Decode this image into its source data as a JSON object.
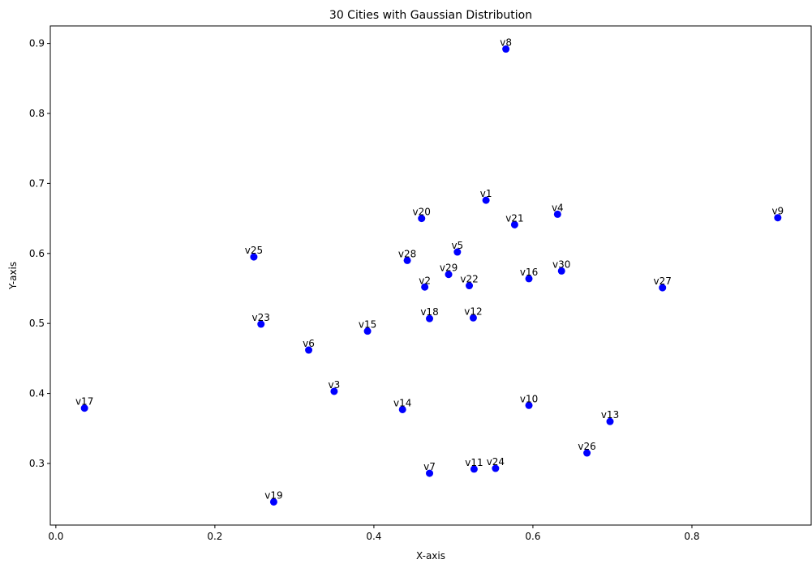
{
  "chart_data": {
    "type": "scatter",
    "title": "30 Cities with Gaussian Distribution",
    "xlabel": "X-axis",
    "ylabel": "Y-axis",
    "xlim": [
      -0.007,
      0.95
    ],
    "ylim": [
      0.212,
      0.925
    ],
    "xticks": [
      "0.0",
      "0.2",
      "0.4",
      "0.6",
      "0.8"
    ],
    "yticks": [
      "0.3",
      "0.4",
      "0.5",
      "0.6",
      "0.7",
      "0.8",
      "0.9"
    ],
    "grid": false,
    "marker_color": "#0000ff",
    "points": [
      {
        "label": "v1",
        "x": 0.541,
        "y": 0.676
      },
      {
        "label": "v2",
        "x": 0.464,
        "y": 0.552
      },
      {
        "label": "v3",
        "x": 0.35,
        "y": 0.403
      },
      {
        "label": "v4",
        "x": 0.631,
        "y": 0.656
      },
      {
        "label": "v5",
        "x": 0.505,
        "y": 0.602
      },
      {
        "label": "v6",
        "x": 0.318,
        "y": 0.462
      },
      {
        "label": "v7",
        "x": 0.47,
        "y": 0.286
      },
      {
        "label": "v8",
        "x": 0.566,
        "y": 0.892
      },
      {
        "label": "v9",
        "x": 0.908,
        "y": 0.651
      },
      {
        "label": "v10",
        "x": 0.595,
        "y": 0.383
      },
      {
        "label": "v11",
        "x": 0.526,
        "y": 0.292
      },
      {
        "label": "v12",
        "x": 0.525,
        "y": 0.508
      },
      {
        "label": "v13",
        "x": 0.697,
        "y": 0.36
      },
      {
        "label": "v14",
        "x": 0.436,
        "y": 0.377
      },
      {
        "label": "v15",
        "x": 0.392,
        "y": 0.489
      },
      {
        "label": "v16",
        "x": 0.595,
        "y": 0.564
      },
      {
        "label": "v17",
        "x": 0.036,
        "y": 0.379
      },
      {
        "label": "v18",
        "x": 0.47,
        "y": 0.507
      },
      {
        "label": "v19",
        "x": 0.274,
        "y": 0.245
      },
      {
        "label": "v20",
        "x": 0.46,
        "y": 0.65
      },
      {
        "label": "v21",
        "x": 0.577,
        "y": 0.641
      },
      {
        "label": "v22",
        "x": 0.52,
        "y": 0.554
      },
      {
        "label": "v23",
        "x": 0.258,
        "y": 0.499
      },
      {
        "label": "v24",
        "x": 0.553,
        "y": 0.293
      },
      {
        "label": "v25",
        "x": 0.249,
        "y": 0.595
      },
      {
        "label": "v26",
        "x": 0.668,
        "y": 0.315
      },
      {
        "label": "v27",
        "x": 0.763,
        "y": 0.551
      },
      {
        "label": "v28",
        "x": 0.442,
        "y": 0.59
      },
      {
        "label": "v29",
        "x": 0.494,
        "y": 0.57
      },
      {
        "label": "v30",
        "x": 0.636,
        "y": 0.575
      }
    ]
  }
}
